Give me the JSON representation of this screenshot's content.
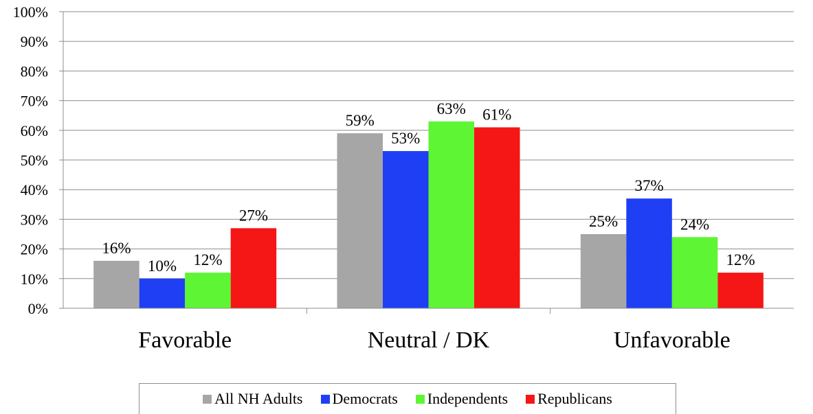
{
  "chart_data": {
    "type": "bar",
    "categories": [
      "Favorable",
      "Neutral / DK",
      "Unfavorable"
    ],
    "series": [
      {
        "name": "All NH Adults",
        "color": "#a6a6a6",
        "values": [
          16,
          59,
          25
        ]
      },
      {
        "name": "Democrats",
        "color": "#1f3ff5",
        "values": [
          10,
          53,
          37
        ]
      },
      {
        "name": "Independents",
        "color": "#5ef534",
        "values": [
          12,
          63,
          24
        ]
      },
      {
        "name": "Republicans",
        "color": "#f51616",
        "values": [
          27,
          61,
          12
        ]
      }
    ],
    "ylim": [
      0,
      100
    ],
    "yticks": [
      "0%",
      "10%",
      "20%",
      "30%",
      "40%",
      "50%",
      "60%",
      "70%",
      "80%",
      "90%",
      "100%"
    ],
    "value_suffix": "%",
    "grid": true,
    "legend_position": "bottom"
  }
}
